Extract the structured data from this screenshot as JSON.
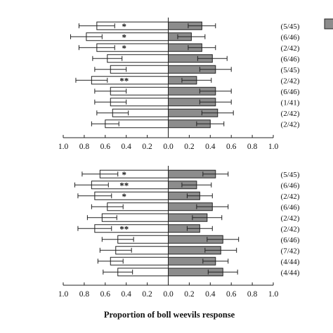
{
  "colors": {
    "left_fill": "#ffffff",
    "right_fill": "#8c8c8c",
    "stroke": "#222222",
    "legend_swatch": "#8c8c8c"
  },
  "legend": {
    "swatch_only": true,
    "position": "top-right",
    "clipped": true
  },
  "xlabel": "Proportion of boll weevils response",
  "chart_data": [
    {
      "type": "bar",
      "orientation": "horizontal-diverging",
      "xlim": [
        -1.0,
        1.0
      ],
      "tick_labels": [
        "1.0",
        "0.8",
        "0.6",
        "0.4",
        "0.2",
        "0.0",
        "0.2",
        "0.4",
        "0.6",
        "0.8",
        "1.0"
      ],
      "rows": [
        {
          "left": 0.68,
          "left_err": 0.17,
          "right": 0.32,
          "right_err": 0.13,
          "sig": "*",
          "count": "(5/45)"
        },
        {
          "left": 0.78,
          "left_err": 0.15,
          "right": 0.22,
          "right_err": 0.13,
          "sig": "*",
          "count": "(6/46)"
        },
        {
          "left": 0.68,
          "left_err": 0.17,
          "right": 0.32,
          "right_err": 0.13,
          "sig": "*",
          "count": "(2/42)"
        },
        {
          "left": 0.58,
          "left_err": 0.14,
          "right": 0.42,
          "right_err": 0.14,
          "sig": "",
          "count": "(6/46)"
        },
        {
          "left": 0.55,
          "left_err": 0.15,
          "right": 0.45,
          "right_err": 0.15,
          "sig": "",
          "count": "(5/45)"
        },
        {
          "left": 0.73,
          "left_err": 0.15,
          "right": 0.27,
          "right_err": 0.14,
          "sig": "**",
          "count": "(2/42)"
        },
        {
          "left": 0.55,
          "left_err": 0.15,
          "right": 0.45,
          "right_err": 0.15,
          "sig": "",
          "count": "(6/46)"
        },
        {
          "left": 0.55,
          "left_err": 0.15,
          "right": 0.45,
          "right_err": 0.15,
          "sig": "",
          "count": "(1/41)"
        },
        {
          "left": 0.53,
          "left_err": 0.15,
          "right": 0.47,
          "right_err": 0.15,
          "sig": "",
          "count": "(2/42)"
        },
        {
          "left": 0.6,
          "left_err": 0.13,
          "right": 0.4,
          "right_err": 0.13,
          "sig": "",
          "count": "(2/42)"
        }
      ]
    },
    {
      "type": "bar",
      "orientation": "horizontal-diverging",
      "xlim": [
        -1.0,
        1.0
      ],
      "tick_labels": [
        "1.0",
        "0.8",
        "0.6",
        "0.4",
        "0.2",
        "0.0",
        "0.2",
        "0.4",
        "0.6",
        "0.8",
        "1.0"
      ],
      "rows": [
        {
          "left": 0.65,
          "left_err": 0.17,
          "right": 0.45,
          "right_err": 0.12,
          "sig": "*",
          "count": "(5/45)"
        },
        {
          "left": 0.73,
          "left_err": 0.16,
          "right": 0.27,
          "right_err": 0.14,
          "sig": "**",
          "count": "(6/46)"
        },
        {
          "left": 0.7,
          "left_err": 0.16,
          "right": 0.3,
          "right_err": 0.12,
          "sig": "*",
          "count": "(2/42)"
        },
        {
          "left": 0.58,
          "left_err": 0.15,
          "right": 0.42,
          "right_err": 0.15,
          "sig": "",
          "count": "(6/46)"
        },
        {
          "left": 0.63,
          "left_err": 0.14,
          "right": 0.37,
          "right_err": 0.14,
          "sig": "",
          "count": "(2/42)"
        },
        {
          "left": 0.7,
          "left_err": 0.16,
          "right": 0.3,
          "right_err": 0.12,
          "sig": "**",
          "count": "(2/42)"
        },
        {
          "left": 0.48,
          "left_err": 0.15,
          "right": 0.52,
          "right_err": 0.15,
          "sig": "",
          "count": "(6/46)"
        },
        {
          "left": 0.5,
          "left_err": 0.15,
          "right": 0.5,
          "right_err": 0.15,
          "sig": "",
          "count": "(7/42)"
        },
        {
          "left": 0.55,
          "left_err": 0.12,
          "right": 0.45,
          "right_err": 0.12,
          "sig": "",
          "count": "(4/44)"
        },
        {
          "left": 0.48,
          "left_err": 0.14,
          "right": 0.52,
          "right_err": 0.14,
          "sig": "",
          "count": "(4/44)"
        }
      ]
    }
  ]
}
